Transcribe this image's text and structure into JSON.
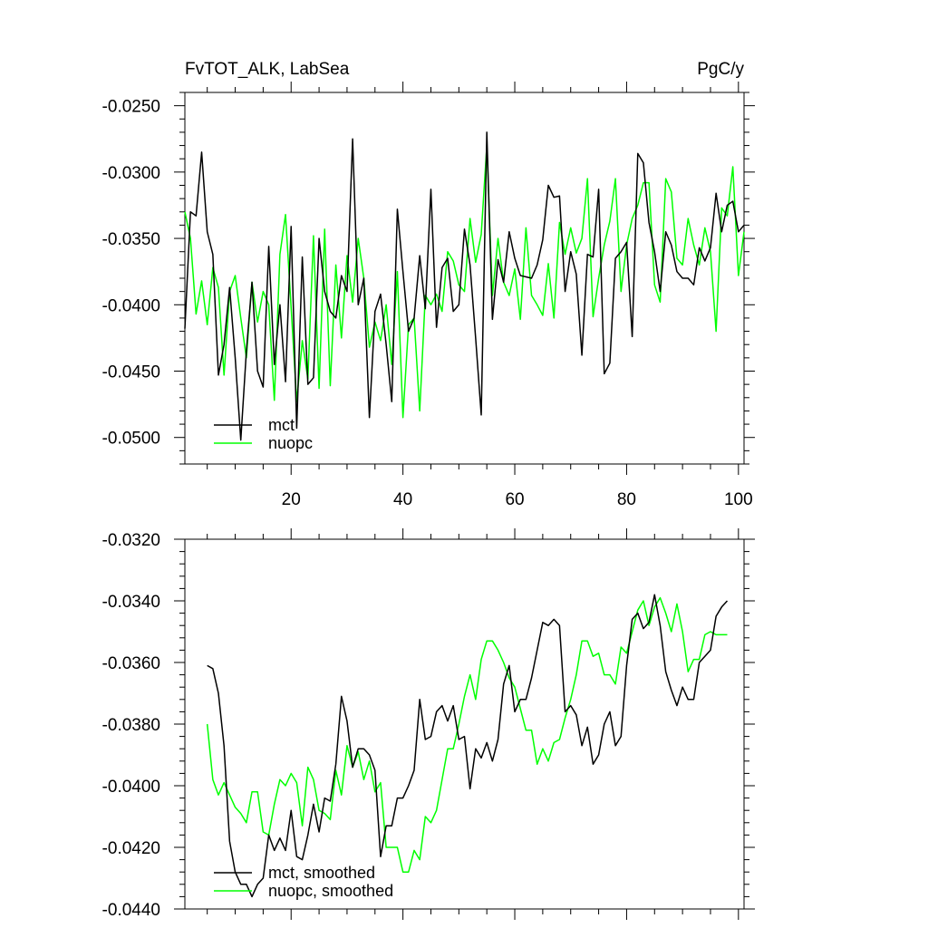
{
  "figure": {
    "title_left": "FvTOT_ALK, LabSea",
    "title_right": "PgC/y"
  },
  "chart_data": [
    {
      "type": "line",
      "title": "FvTOT_ALK, LabSea",
      "units": "PgC/y",
      "xlim": [
        1,
        101
      ],
      "ylim": [
        -0.052,
        -0.024
      ],
      "x_ticks": [
        20,
        40,
        60,
        80,
        100
      ],
      "x_tick_labels": [
        "20",
        "40",
        "60",
        "80",
        "100"
      ],
      "y_ticks": [
        -0.025,
        -0.03,
        -0.035,
        -0.04,
        -0.045,
        -0.05
      ],
      "y_tick_labels": [
        "-0.0250",
        "-0.0300",
        "-0.0350",
        "-0.0400",
        "-0.0450",
        "-0.0500"
      ],
      "legend_placement": "bottom-left",
      "x": [
        1,
        2,
        3,
        4,
        5,
        6,
        7,
        8,
        9,
        10,
        11,
        12,
        13,
        14,
        15,
        16,
        17,
        18,
        19,
        20,
        21,
        22,
        23,
        24,
        25,
        26,
        27,
        28,
        29,
        30,
        31,
        32,
        33,
        34,
        35,
        36,
        37,
        38,
        39,
        40,
        41,
        42,
        43,
        44,
        45,
        46,
        47,
        48,
        49,
        50,
        51,
        52,
        53,
        54,
        55,
        56,
        57,
        58,
        59,
        60,
        61,
        62,
        63,
        64,
        65,
        66,
        67,
        68,
        69,
        70,
        71,
        72,
        73,
        74,
        75,
        76,
        77,
        78,
        79,
        80,
        81,
        82,
        83,
        84,
        85,
        86,
        87,
        88,
        89,
        90,
        91,
        92,
        93,
        94,
        95,
        96,
        97,
        98,
        99,
        100,
        101
      ],
      "series": [
        {
          "name": "mct",
          "color": "#000000",
          "values": [
            -0.0418,
            -0.033,
            -0.0333,
            -0.0285,
            -0.0345,
            -0.0362,
            -0.0453,
            -0.043,
            -0.0387,
            -0.044,
            -0.0502,
            -0.0435,
            -0.0383,
            -0.045,
            -0.0462,
            -0.0356,
            -0.0445,
            -0.04,
            -0.0458,
            -0.0341,
            -0.0493,
            -0.0364,
            -0.046,
            -0.0455,
            -0.035,
            -0.039,
            -0.0405,
            -0.041,
            -0.0378,
            -0.039,
            -0.0275,
            -0.04,
            -0.038,
            -0.0485,
            -0.0405,
            -0.0392,
            -0.043,
            -0.0473,
            -0.0328,
            -0.0375,
            -0.042,
            -0.041,
            -0.0363,
            -0.0403,
            -0.0313,
            -0.0417,
            -0.0372,
            -0.0365,
            -0.0405,
            -0.04,
            -0.0343,
            -0.037,
            -0.0425,
            -0.0483,
            -0.027,
            -0.0411,
            -0.0366,
            -0.0383,
            -0.0345,
            -0.0365,
            -0.0378,
            -0.0379,
            -0.038,
            -0.037,
            -0.0351,
            -0.031,
            -0.0319,
            -0.0318,
            -0.039,
            -0.036,
            -0.0377,
            -0.0438,
            -0.0362,
            -0.0364,
            -0.0313,
            -0.0452,
            -0.0444,
            -0.0365,
            -0.036,
            -0.0353,
            -0.0424,
            -0.0286,
            -0.0293,
            -0.0338,
            -0.036,
            -0.039,
            -0.0345,
            -0.0355,
            -0.0375,
            -0.038,
            -0.038,
            -0.0385,
            -0.0357,
            -0.0367,
            -0.0357,
            -0.0316,
            -0.0345,
            -0.0325,
            -0.0322,
            -0.0345,
            -0.034
          ]
        },
        {
          "name": "nuopc",
          "color": "#00ff00",
          "values": [
            -0.033,
            -0.035,
            -0.0407,
            -0.0382,
            -0.0415,
            -0.0372,
            -0.0387,
            -0.0453,
            -0.039,
            -0.0378,
            -0.041,
            -0.044,
            -0.0383,
            -0.0413,
            -0.039,
            -0.04,
            -0.0472,
            -0.0362,
            -0.0332,
            -0.0402,
            -0.0473,
            -0.0427,
            -0.0456,
            -0.0348,
            -0.0463,
            -0.0343,
            -0.0461,
            -0.037,
            -0.0425,
            -0.0363,
            -0.0398,
            -0.035,
            -0.038,
            -0.0432,
            -0.0413,
            -0.0427,
            -0.04,
            -0.0445,
            -0.0375,
            -0.0485,
            -0.0415,
            -0.041,
            -0.048,
            -0.0393,
            -0.04,
            -0.0392,
            -0.0405,
            -0.036,
            -0.0367,
            -0.0385,
            -0.039,
            -0.0335,
            -0.0368,
            -0.0347,
            -0.028,
            -0.0393,
            -0.035,
            -0.0383,
            -0.0393,
            -0.0373,
            -0.0411,
            -0.0342,
            -0.0393,
            -0.04,
            -0.0408,
            -0.0369,
            -0.041,
            -0.0338,
            -0.0362,
            -0.0342,
            -0.0361,
            -0.035,
            -0.0305,
            -0.0409,
            -0.038,
            -0.0355,
            -0.0337,
            -0.0305,
            -0.039,
            -0.0355,
            -0.0335,
            -0.0325,
            -0.0308,
            -0.0308,
            -0.0385,
            -0.0398,
            -0.0305,
            -0.0315,
            -0.0365,
            -0.037,
            -0.0335,
            -0.0355,
            -0.037,
            -0.0342,
            -0.036,
            -0.042,
            -0.0327,
            -0.0333,
            -0.0296,
            -0.0378,
            -0.0345
          ]
        }
      ]
    },
    {
      "type": "line",
      "title": "",
      "xlim": [
        1,
        101
      ],
      "ylim": [
        -0.044,
        -0.032
      ],
      "x_ticks": [
        20,
        40,
        60,
        80,
        100
      ],
      "y_ticks": [
        -0.032,
        -0.034,
        -0.036,
        -0.038,
        -0.04,
        -0.042,
        -0.044
      ],
      "y_tick_labels": [
        "-0.0320",
        "-0.0340",
        "-0.0360",
        "-0.0380",
        "-0.0400",
        "-0.0420",
        "-0.0440"
      ],
      "legend_placement": "bottom-left",
      "x": [
        5,
        6,
        7,
        8,
        9,
        10,
        11,
        12,
        13,
        14,
        15,
        16,
        17,
        18,
        19,
        20,
        21,
        22,
        23,
        24,
        25,
        26,
        27,
        28,
        29,
        30,
        31,
        32,
        33,
        34,
        35,
        36,
        37,
        38,
        39,
        40,
        41,
        42,
        43,
        44,
        45,
        46,
        47,
        48,
        49,
        50,
        51,
        52,
        53,
        54,
        55,
        56,
        57,
        58,
        59,
        60,
        61,
        62,
        63,
        64,
        65,
        66,
        67,
        68,
        69,
        70,
        71,
        72,
        73,
        74,
        75,
        76,
        77,
        78,
        79,
        80,
        81,
        82,
        83,
        84,
        85,
        86,
        87,
        88,
        89,
        90,
        91,
        92,
        93,
        94,
        95,
        96,
        97,
        98
      ],
      "series": [
        {
          "name": "mct, smoothed",
          "color": "#000000",
          "values": [
            -0.0361,
            -0.0362,
            -0.037,
            -0.0387,
            -0.0418,
            -0.0428,
            -0.0432,
            -0.0432,
            -0.0436,
            -0.0432,
            -0.043,
            -0.0416,
            -0.0421,
            -0.0417,
            -0.0421,
            -0.0408,
            -0.0423,
            -0.0424,
            -0.0416,
            -0.0406,
            -0.0415,
            -0.0404,
            -0.0405,
            -0.0393,
            -0.0371,
            -0.0379,
            -0.0394,
            -0.0388,
            -0.0388,
            -0.039,
            -0.0395,
            -0.0423,
            -0.0413,
            -0.0413,
            -0.0404,
            -0.0404,
            -0.04,
            -0.0395,
            -0.0372,
            -0.0385,
            -0.0384,
            -0.0376,
            -0.0374,
            -0.0379,
            -0.0374,
            -0.0385,
            -0.0384,
            -0.0401,
            -0.0388,
            -0.0391,
            -0.0386,
            -0.0392,
            -0.0385,
            -0.0367,
            -0.0361,
            -0.0376,
            -0.0372,
            -0.0372,
            -0.0365,
            -0.0356,
            -0.0347,
            -0.0348,
            -0.0346,
            -0.0348,
            -0.0376,
            -0.0374,
            -0.0377,
            -0.0387,
            -0.0381,
            -0.0393,
            -0.039,
            -0.038,
            -0.0376,
            -0.0387,
            -0.0384,
            -0.0361,
            -0.0346,
            -0.0344,
            -0.0349,
            -0.0347,
            -0.0338,
            -0.0348,
            -0.0363,
            -0.0369,
            -0.0374,
            -0.0368,
            -0.0372,
            -0.0372,
            -0.036,
            -0.0358,
            -0.0356,
            -0.0345,
            -0.0342,
            -0.034
          ]
        },
        {
          "name": "nuopc, smoothed",
          "color": "#00ff00",
          "values": [
            -0.038,
            -0.0398,
            -0.0403,
            -0.0399,
            -0.0403,
            -0.0407,
            -0.0409,
            -0.0412,
            -0.0402,
            -0.0402,
            -0.0415,
            -0.0416,
            -0.0406,
            -0.0398,
            -0.04,
            -0.0396,
            -0.0399,
            -0.0413,
            -0.0394,
            -0.0398,
            -0.0408,
            -0.0409,
            -0.0411,
            -0.0395,
            -0.0403,
            -0.0387,
            -0.0394,
            -0.0389,
            -0.0398,
            -0.0392,
            -0.0402,
            -0.0399,
            -0.042,
            -0.042,
            -0.042,
            -0.0428,
            -0.0428,
            -0.0421,
            -0.0424,
            -0.041,
            -0.0412,
            -0.0408,
            -0.0398,
            -0.0388,
            -0.0388,
            -0.038,
            -0.0371,
            -0.0364,
            -0.0372,
            -0.0359,
            -0.0353,
            -0.0353,
            -0.0356,
            -0.036,
            -0.0365,
            -0.0368,
            -0.0375,
            -0.0382,
            -0.0382,
            -0.0393,
            -0.0388,
            -0.0392,
            -0.0386,
            -0.0385,
            -0.0378,
            -0.0372,
            -0.0364,
            -0.0353,
            -0.0353,
            -0.0358,
            -0.0357,
            -0.0364,
            -0.0364,
            -0.0367,
            -0.0355,
            -0.0357,
            -0.035,
            -0.0343,
            -0.034,
            -0.0348,
            -0.0342,
            -0.0339,
            -0.0344,
            -0.035,
            -0.0341,
            -0.035,
            -0.0363,
            -0.0359,
            -0.0359,
            -0.0351,
            -0.035,
            -0.0351,
            -0.0351,
            -0.0351
          ]
        }
      ]
    }
  ]
}
